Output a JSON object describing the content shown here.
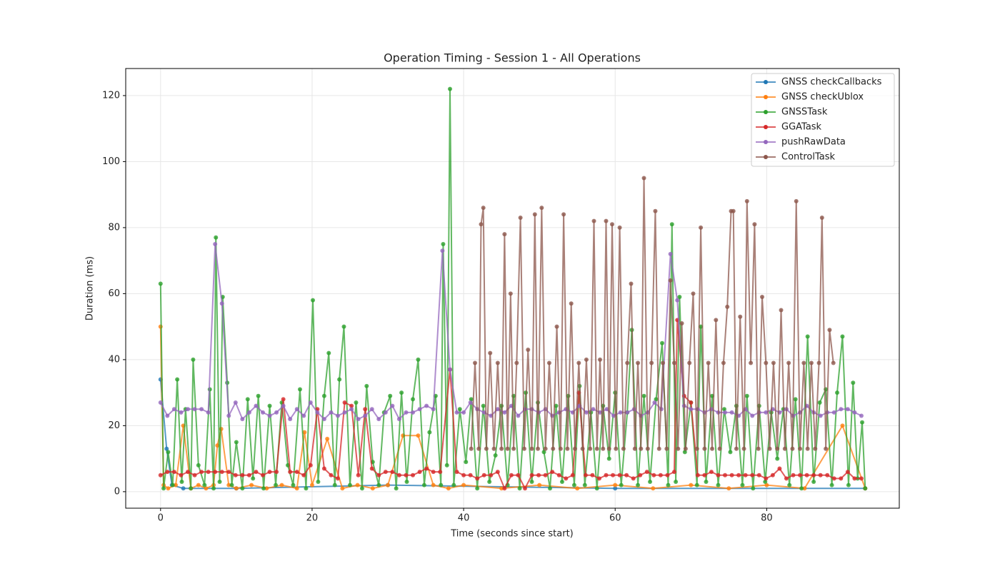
{
  "chart_data": {
    "type": "line",
    "title": "Operation Timing - Session 1 - All Operations",
    "x_label": "Time (seconds since start)",
    "y_label": "Duration (ms)",
    "xlim": [
      -4.6,
      97.5
    ],
    "ylim": [
      -5,
      128.2
    ],
    "xticks": [
      0,
      20,
      40,
      60,
      80
    ],
    "yticks": [
      0,
      20,
      40,
      60,
      80,
      100,
      120
    ],
    "grid": true,
    "legend": "upper right",
    "series": [
      {
        "name": "GNSS checkCallbacks",
        "color": "#1f77b4",
        "x": [
          0,
          0.8,
          1.5,
          3,
          10,
          30,
          60,
          93
        ],
        "values": [
          34,
          13,
          2,
          1,
          1,
          2,
          1,
          1
        ]
      },
      {
        "name": "GNSS checkUblox",
        "color": "#ff7f0e",
        "x": [
          0,
          0.4,
          1,
          2,
          3,
          4,
          5,
          6,
          7,
          7.5,
          8,
          9,
          10,
          12,
          14,
          16,
          18,
          19,
          20,
          22,
          24,
          26,
          28,
          30,
          32,
          34,
          36,
          38,
          40,
          45,
          50,
          55,
          60,
          65,
          70,
          75,
          80,
          85,
          90,
          93
        ],
        "values": [
          50,
          2,
          1,
          2,
          20,
          1,
          2,
          1,
          2,
          14,
          19,
          2,
          1,
          2,
          1,
          2,
          1,
          18,
          2,
          16,
          1,
          2,
          1,
          2,
          17,
          17,
          2,
          1,
          2,
          1,
          2,
          1,
          2,
          1,
          2,
          1,
          2,
          1,
          20,
          1
        ]
      },
      {
        "name": "GNSSTask",
        "color": "#2ca02c",
        "x": [
          0,
          0.4,
          1,
          1.6,
          2.2,
          2.8,
          3.3,
          4,
          4.3,
          5,
          5.8,
          6.5,
          7,
          7.3,
          7.8,
          8.2,
          8.8,
          9.4,
          10,
          10.8,
          11.5,
          12.2,
          12.9,
          13.6,
          14.4,
          15.2,
          16,
          16.8,
          17.5,
          18.4,
          19.2,
          20.1,
          20.8,
          21.6,
          22.2,
          23,
          23.6,
          24.2,
          25,
          25.8,
          26.6,
          27.2,
          28,
          28.8,
          29.5,
          30.3,
          31.1,
          31.8,
          32.5,
          33.3,
          34,
          34.8,
          35.5,
          36.3,
          37,
          37.3,
          37.8,
          38.2,
          38.7,
          39.5,
          40.3,
          41,
          41.8,
          42.6,
          43.4,
          44.2,
          45,
          45.8,
          46.6,
          47.4,
          48.2,
          49,
          49.8,
          50.6,
          51.4,
          52.2,
          53,
          53.8,
          54.6,
          55.3,
          56,
          56.8,
          57.6,
          58.4,
          59.2,
          60,
          60.8,
          61.6,
          62.2,
          63,
          63.8,
          64.6,
          65.4,
          66.2,
          67,
          67.5,
          68,
          68.5,
          69.2,
          70,
          70.8,
          71.3,
          72,
          72.8,
          73.6,
          74.4,
          75.2,
          76,
          76.8,
          77.4,
          78.2,
          79,
          79.8,
          80.6,
          81.4,
          82.2,
          83,
          83.8,
          84.6,
          85.4,
          86.2,
          87,
          87.8,
          88.6,
          89.3,
          90,
          90.8,
          91.4,
          92,
          92.6,
          93
        ],
        "values": [
          63,
          1,
          12,
          2,
          34,
          3,
          25,
          1,
          40,
          8,
          2,
          31,
          1,
          77,
          3,
          59,
          33,
          2,
          15,
          1,
          28,
          4,
          29,
          1,
          26,
          2,
          27,
          8,
          2,
          31,
          1,
          58,
          3,
          29,
          42,
          2,
          34,
          50,
          2,
          27,
          1,
          32,
          9,
          2,
          24,
          29,
          1,
          30,
          3,
          28,
          40,
          2,
          18,
          29,
          2,
          75,
          8,
          122,
          2,
          25,
          9,
          28,
          1,
          26,
          3,
          11,
          26,
          2,
          29,
          1,
          30,
          3,
          27,
          12,
          1,
          26,
          3,
          29,
          2,
          32,
          2,
          24,
          1,
          26,
          10,
          30,
          2,
          24,
          49,
          2,
          29,
          3,
          28,
          45,
          2,
          81,
          3,
          59,
          12,
          27,
          2,
          50,
          3,
          29,
          2,
          25,
          12,
          26,
          2,
          29,
          1,
          26,
          3,
          24,
          10,
          25,
          2,
          28,
          1,
          47,
          3,
          27,
          31,
          2,
          30,
          47,
          2,
          33,
          4,
          21,
          1
        ]
      },
      {
        "name": "GGATask",
        "color": "#d62728",
        "x": [
          0,
          0.9,
          1.8,
          2.7,
          3.6,
          4.5,
          5.4,
          6.3,
          7.2,
          8.1,
          9,
          9.9,
          10.8,
          11.7,
          12.6,
          13.5,
          14.4,
          15.3,
          16.2,
          17.1,
          18,
          18.9,
          19.8,
          20.7,
          21.6,
          22.5,
          23.4,
          24.3,
          25.2,
          26.1,
          27,
          27.9,
          28.8,
          29.7,
          30.6,
          31.5,
          32.4,
          33.3,
          34.2,
          35.1,
          36,
          36.9,
          38.2,
          39.1,
          40,
          40.9,
          41.8,
          42.7,
          43.6,
          44.5,
          45.4,
          46.3,
          47.2,
          48.1,
          49,
          49.9,
          50.8,
          51.7,
          52.6,
          53.5,
          54.4,
          55.2,
          56.1,
          57,
          57.9,
          58.8,
          59.7,
          60.6,
          61.5,
          62.4,
          63.3,
          64.2,
          65.1,
          66,
          66.9,
          67.8,
          68.2,
          69.1,
          70,
          70.9,
          71.8,
          72.7,
          73.6,
          74.5,
          75.4,
          76.3,
          77.2,
          78.1,
          79,
          79.9,
          80.8,
          81.7,
          82.6,
          83.5,
          84.4,
          85.3,
          86.2,
          87.1,
          88,
          88.9,
          89.8,
          90.7,
          91.6,
          92.5
        ],
        "values": [
          5,
          6,
          6,
          5,
          6,
          5,
          6,
          6,
          6,
          6,
          6,
          5,
          5,
          5,
          6,
          5,
          6,
          6,
          28,
          6,
          6,
          5,
          8,
          25,
          7,
          5,
          4,
          27,
          26,
          5,
          25,
          7,
          5,
          6,
          6,
          5,
          5,
          5,
          6,
          7,
          6,
          6,
          37,
          6,
          5,
          5,
          4,
          5,
          5,
          6,
          1,
          5,
          5,
          1,
          5,
          5,
          5,
          6,
          5,
          4,
          5,
          30,
          5,
          5,
          4,
          5,
          5,
          5,
          5,
          4,
          5,
          6,
          5,
          5,
          5,
          6,
          52,
          29,
          27,
          5,
          5,
          6,
          5,
          5,
          5,
          5,
          5,
          5,
          5,
          4,
          5,
          7,
          4,
          5,
          5,
          5,
          5,
          5,
          5,
          4,
          4,
          6,
          4,
          4
        ]
      },
      {
        "name": "pushRawData",
        "color": "#9467bd",
        "x": [
          0,
          0.9,
          1.8,
          2.7,
          3.6,
          4.5,
          5.4,
          6.3,
          7.2,
          8.1,
          9,
          9.9,
          10.8,
          11.7,
          12.6,
          13.5,
          14.4,
          15.3,
          16.2,
          17.1,
          18,
          18.9,
          19.8,
          20.7,
          21.6,
          22.5,
          23.4,
          24.3,
          25.2,
          26.1,
          27,
          27.9,
          28.8,
          29.7,
          30.6,
          31.5,
          32.4,
          33.3,
          34.2,
          35.1,
          36,
          37.2,
          38.2,
          39.1,
          40,
          40.9,
          41.8,
          42.7,
          43.6,
          44.5,
          45.4,
          46.3,
          47.2,
          48.1,
          49,
          49.9,
          50.8,
          51.7,
          52.6,
          53.5,
          54.4,
          55.3,
          56.2,
          57.1,
          58,
          58.9,
          59.8,
          60.7,
          61.6,
          62.5,
          63.4,
          64.3,
          65.2,
          66.1,
          67.3,
          68.2,
          69.1,
          70,
          70.9,
          71.8,
          72.7,
          73.6,
          74.5,
          75.4,
          76.3,
          77.2,
          78.1,
          79,
          79.9,
          80.8,
          81.7,
          82.6,
          83.5,
          84.4,
          85.3,
          86.2,
          87.1,
          88,
          88.9,
          89.8,
          90.7,
          91.6,
          92.5
        ],
        "values": [
          27,
          23,
          25,
          24,
          25,
          25,
          25,
          24,
          75,
          57,
          23,
          27,
          22,
          24,
          26,
          24,
          23,
          24,
          26,
          22,
          25,
          23,
          27,
          24,
          22,
          24,
          23,
          24,
          25,
          22,
          23,
          25,
          22,
          24,
          26,
          22,
          24,
          24,
          25,
          26,
          25,
          73,
          37,
          24,
          24,
          27,
          25,
          24,
          23,
          25,
          24,
          26,
          23,
          25,
          25,
          24,
          25,
          23,
          24,
          25,
          24,
          26,
          24,
          25,
          24,
          25,
          23,
          24,
          24,
          25,
          23,
          24,
          27,
          25,
          72,
          58,
          26,
          25,
          25,
          24,
          25,
          24,
          24,
          24,
          23,
          25,
          23,
          24,
          24,
          25,
          24,
          25,
          23,
          24,
          26,
          24,
          23,
          24,
          24,
          25,
          25,
          24,
          23
        ]
      },
      {
        "name": "ControlTask",
        "color": "#8c564b",
        "x": [
          41,
          41.5,
          42,
          42.3,
          42.6,
          43,
          43.5,
          44,
          44.5,
          45,
          45.4,
          45.8,
          46.2,
          46.6,
          47,
          47.5,
          48,
          48.5,
          49,
          49.4,
          49.8,
          50.3,
          50.8,
          51.3,
          51.8,
          52.3,
          52.8,
          53.2,
          53.7,
          54.2,
          54.7,
          55.2,
          55.7,
          56.2,
          56.7,
          57.2,
          57.6,
          58,
          58.4,
          58.8,
          59.2,
          59.6,
          60.1,
          60.6,
          61.1,
          61.6,
          62.1,
          62.6,
          63,
          63.4,
          63.8,
          64.3,
          64.8,
          65.3,
          65.8,
          66.3,
          66.8,
          67.3,
          67.8,
          68.3,
          68.8,
          69.3,
          69.8,
          70.3,
          70.8,
          71.3,
          71.8,
          72.3,
          72.8,
          73.3,
          73.8,
          74.3,
          74.8,
          75.3,
          75.6,
          76,
          76.5,
          77,
          77.4,
          77.9,
          78.4,
          78.9,
          79.4,
          79.9,
          80.4,
          80.9,
          81.4,
          81.9,
          82.4,
          82.9,
          83.4,
          83.9,
          84.4,
          84.9,
          85.4,
          85.9,
          86.4,
          86.9,
          87.3,
          87.8,
          88.3,
          88.8
        ],
        "values": [
          13,
          39,
          13,
          81,
          86,
          13,
          42,
          13,
          39,
          13,
          78,
          13,
          60,
          13,
          39,
          83,
          13,
          43,
          13,
          84,
          13,
          86,
          13,
          39,
          13,
          50,
          13,
          84,
          13,
          57,
          13,
          39,
          13,
          40,
          13,
          82,
          13,
          40,
          13,
          82,
          13,
          81,
          13,
          80,
          13,
          39,
          63,
          13,
          39,
          13,
          95,
          13,
          39,
          85,
          13,
          39,
          13,
          64,
          39,
          13,
          51,
          13,
          39,
          60,
          13,
          80,
          13,
          39,
          13,
          52,
          13,
          39,
          56,
          85,
          85,
          13,
          53,
          13,
          88,
          39,
          81,
          13,
          59,
          39,
          13,
          39,
          13,
          55,
          13,
          39,
          13,
          88,
          13,
          39,
          13,
          39,
          13,
          39,
          83,
          13,
          49,
          39
        ]
      }
    ]
  }
}
